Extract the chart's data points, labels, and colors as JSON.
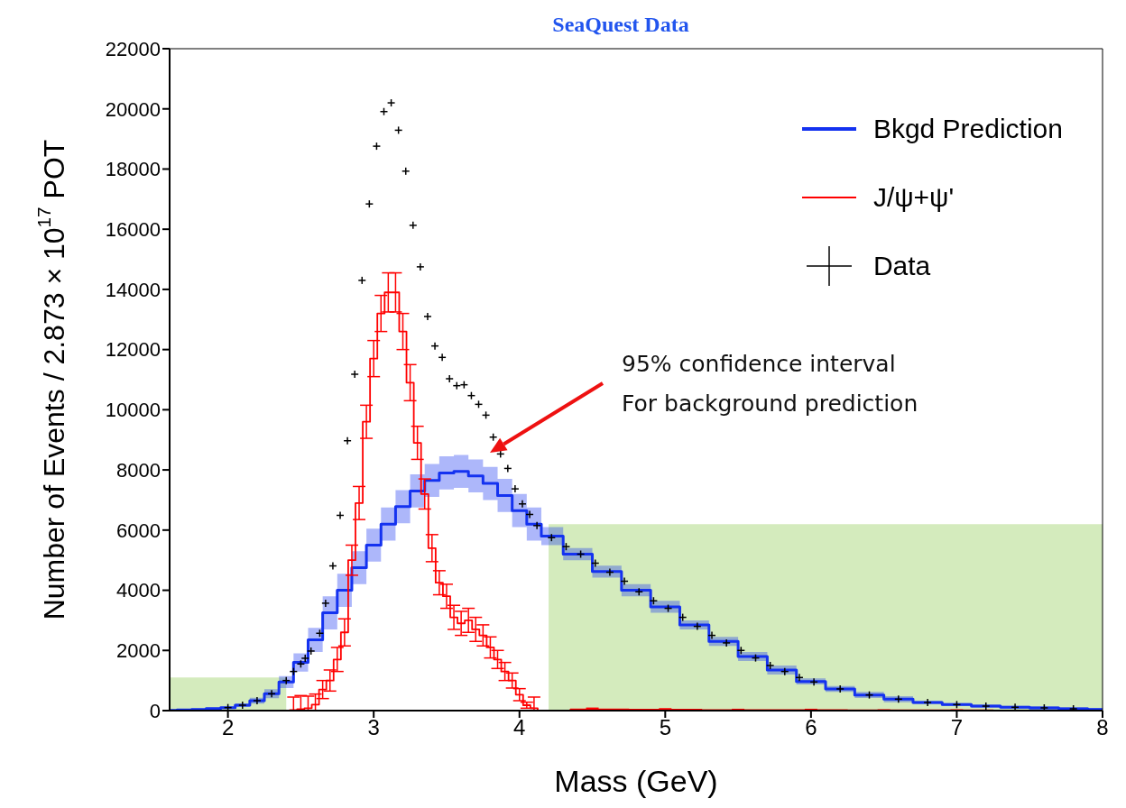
{
  "chart_data": {
    "type": "step",
    "title": "SeaQuest Data",
    "xlabel": "Mass (GeV)",
    "ylabel": "Number of Events / 2.873 × 10$^{17}$ POT",
    "xlim": [
      1.6,
      8
    ],
    "xticks": [
      2,
      3,
      4,
      5,
      6,
      7,
      8
    ],
    "ylim": [
      0,
      22000
    ],
    "yticks": [
      0,
      2000,
      4000,
      6000,
      8000,
      10000,
      12000,
      14000,
      16000,
      18000,
      20000,
      22000
    ],
    "grid": false,
    "legend": "top right",
    "annotations": [
      "95% confidence interval\nFor background prediction"
    ],
    "series": [
      {
        "type": "area",
        "color": "#d4ebbd",
        "x": [
          1.6,
          2.4
        ],
        "values": [
          1100,
          1100
        ]
      },
      {
        "type": "area",
        "color": "#d4ebbd",
        "x": [
          4.2,
          8
        ],
        "values": [
          6200,
          6200
        ]
      },
      {
        "name": "Bkgd Prediction",
        "color": "#1432f0",
        "x": [
          1.6,
          1.7,
          1.8,
          1.9,
          2.0,
          2.1,
          2.2,
          2.3,
          2.4,
          2.5,
          2.6,
          2.7,
          2.8,
          2.9,
          3.0,
          3.1,
          3.2,
          3.3,
          3.4,
          3.5,
          3.6,
          3.7,
          3.8,
          3.9,
          4.0,
          4.1,
          4.2,
          4.4,
          4.6,
          4.8,
          5.0,
          5.2,
          5.4,
          5.6,
          5.8,
          6.0,
          6.2,
          6.4,
          6.6,
          6.8,
          7.0,
          7.2,
          7.4,
          7.6,
          7.8,
          8.0
        ],
        "values": [
          10,
          20,
          40,
          70,
          100,
          180,
          330,
          560,
          950,
          1600,
          2350,
          3250,
          4000,
          4750,
          5500,
          6200,
          6780,
          7300,
          7650,
          7900,
          7950,
          7800,
          7550,
          7150,
          6650,
          6200,
          5800,
          5200,
          4620,
          4000,
          3450,
          2850,
          2300,
          1800,
          1350,
          970,
          720,
          520,
          380,
          270,
          200,
          150,
          110,
          90,
          60,
          40
        ],
        "lower": [
          0,
          0,
          10,
          40,
          70,
          120,
          230,
          410,
          750,
          1300,
          1950,
          2700,
          3450,
          4200,
          4950,
          5650,
          6230,
          6750,
          7100,
          7350,
          7400,
          7250,
          7000,
          6600,
          6100,
          5650,
          5500,
          5000,
          4420,
          3800,
          3250,
          2700,
          2150,
          1650,
          1200,
          870,
          620,
          420,
          280,
          220,
          150,
          100,
          60,
          40,
          10,
          0
        ],
        "upper": [
          40,
          50,
          70,
          100,
          130,
          240,
          430,
          710,
          1150,
          1900,
          2750,
          3800,
          4550,
          5300,
          6050,
          6750,
          7330,
          7850,
          8200,
          8450,
          8500,
          8350,
          8100,
          7700,
          7200,
          6750,
          6100,
          5400,
          4820,
          4200,
          3650,
          3000,
          2450,
          1950,
          1500,
          1070,
          820,
          620,
          480,
          320,
          250,
          200,
          160,
          140,
          110,
          90
        ]
      },
      {
        "name": "J/ψ+ψ'",
        "color": "#ff0000",
        "x": [
          2.4,
          2.45,
          2.5,
          2.55,
          2.6,
          2.65,
          2.7,
          2.75,
          2.8,
          2.85,
          2.9,
          2.95,
          3.0,
          3.05,
          3.1,
          3.15,
          3.2,
          3.25,
          3.3,
          3.35,
          3.4,
          3.45,
          3.5,
          3.55,
          3.6,
          3.65,
          3.7,
          3.75,
          3.8,
          3.85,
          3.9,
          3.95,
          4.0,
          4.05,
          4.1,
          4.15,
          4.2,
          4.5,
          5.0,
          5.5,
          6.0,
          6.5,
          7.0,
          7.5,
          8.0
        ],
        "values": [
          0,
          20,
          50,
          80,
          200,
          700,
          1000,
          1700,
          2600,
          5000,
          6900,
          9600,
          11700,
          13200,
          13900,
          13900,
          12600,
          10900,
          8900,
          7200,
          5400,
          4250,
          3800,
          3100,
          2900,
          3000,
          2700,
          2500,
          2100,
          1700,
          1300,
          1000,
          530,
          180,
          80,
          0,
          0,
          40,
          30,
          20,
          20,
          10,
          10,
          0,
          0
        ],
        "errors": [
          null,
          [
            0,
            450
          ],
          [
            0,
            500
          ],
          [
            0,
            480
          ],
          [
            0,
            550
          ],
          300,
          350,
          400,
          450,
          500,
          550,
          550,
          600,
          600,
          650,
          650,
          600,
          600,
          550,
          500,
          450,
          400,
          400,
          400,
          400,
          400,
          400,
          350,
          350,
          300,
          300,
          250,
          200,
          100,
          [
            0,
            450
          ],
          null,
          null,
          40,
          30,
          20,
          20,
          10,
          10,
          null,
          null
        ]
      },
      {
        "type": "scatter",
        "name": "Data",
        "color": "#000000",
        "marker": "cross",
        "x": [
          2.0,
          2.1,
          2.2,
          2.3,
          2.4,
          2.45,
          2.5,
          2.53,
          2.57,
          2.63,
          2.67,
          2.72,
          2.77,
          2.82,
          2.87,
          2.92,
          2.97,
          3.02,
          3.07,
          3.12,
          3.17,
          3.22,
          3.27,
          3.32,
          3.37,
          3.42,
          3.47,
          3.52,
          3.57,
          3.62,
          3.67,
          3.72,
          3.77,
          3.82,
          3.87,
          3.92,
          3.97,
          4.02,
          4.07,
          4.12,
          4.22,
          4.32,
          4.42,
          4.52,
          4.62,
          4.72,
          4.82,
          4.92,
          5.02,
          5.12,
          5.22,
          5.32,
          5.42,
          5.52,
          5.62,
          5.72,
          5.82,
          5.92,
          6.02,
          6.2,
          6.4,
          6.6,
          6.8,
          7.0,
          7.2,
          7.4,
          7.6,
          7.8
        ],
        "values": [
          100,
          180,
          330,
          560,
          1000,
          1300,
          1550,
          1740,
          1980,
          2570,
          3570,
          4810,
          6490,
          8970,
          11180,
          14300,
          16840,
          18760,
          19910,
          20200,
          19290,
          17930,
          16130,
          14750,
          13100,
          12120,
          11740,
          11030,
          10800,
          10830,
          10470,
          10180,
          9820,
          9090,
          8530,
          8050,
          7370,
          6870,
          6520,
          6150,
          5750,
          5450,
          5200,
          4900,
          4600,
          4300,
          3950,
          3650,
          3400,
          3100,
          2800,
          2500,
          2250,
          2000,
          1750,
          1500,
          1300,
          1100,
          950,
          720,
          520,
          380,
          270,
          200,
          150,
          110,
          90,
          60
        ]
      }
    ]
  }
}
